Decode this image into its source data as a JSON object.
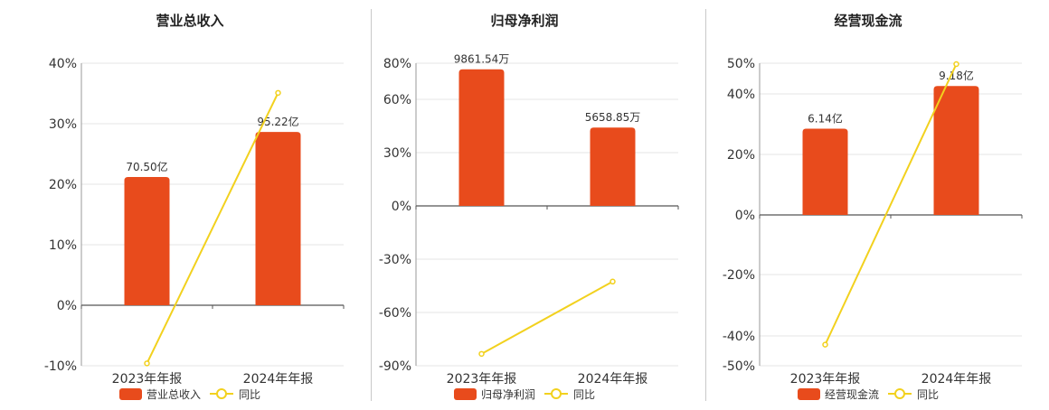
{
  "chart_data": [
    {
      "type": "bar",
      "title": "营业总收入",
      "categories": [
        "2023年年报",
        "2024年年报"
      ],
      "bar_series": {
        "name": "营业总收入",
        "values": [
          70.5,
          95.22
        ],
        "labels": [
          "70.50亿",
          "95.22亿"
        ],
        "color": "#e84b1c"
      },
      "line_series": {
        "name": "同比",
        "values": [
          -9.6,
          35.1
        ],
        "color": "#f2d11e"
      },
      "y_ticks": [
        "40%",
        "30%",
        "20%",
        "10%",
        "0%",
        "-10%"
      ],
      "ylim": [
        -10,
        40
      ],
      "bar_ylim_max": 133,
      "grid": true,
      "legend_position": "bottom"
    },
    {
      "type": "bar",
      "title": "归母净利润",
      "categories": [
        "2023年年报",
        "2024年年报"
      ],
      "bar_series": {
        "name": "归母净利润",
        "values": [
          9861.54,
          5658.85
        ],
        "labels": [
          "9861.54万",
          "5658.85万"
        ],
        "color": "#e84b1c"
      },
      "line_series": {
        "name": "同比",
        "values": [
          -83.3,
          -42.6
        ],
        "color": "#f2d11e"
      },
      "y_ticks": [
        "80%",
        "60%",
        "30%",
        "0%",
        "-30%",
        "-60%",
        "-90%"
      ],
      "ylim": [
        -90,
        80
      ],
      "bar_ylim_max": 10300,
      "grid": true,
      "legend_position": "bottom"
    },
    {
      "type": "bar",
      "title": "经营现金流",
      "categories": [
        "2023年年报",
        "2024年年报"
      ],
      "bar_series": {
        "name": "经营现金流",
        "values": [
          6.14,
          9.18
        ],
        "labels": [
          "6.14亿",
          "9.18亿"
        ],
        "color": "#e84b1c"
      },
      "line_series": {
        "name": "同比",
        "values": [
          -43.0,
          49.7
        ],
        "color": "#f2d11e"
      },
      "y_ticks": [
        "50%",
        "40%",
        "20%",
        "0%",
        "-20%",
        "-40%",
        "-50%"
      ],
      "ylim": [
        -50,
        50
      ],
      "bar_ylim_max": 10.8,
      "grid": true,
      "legend_position": "bottom"
    }
  ]
}
